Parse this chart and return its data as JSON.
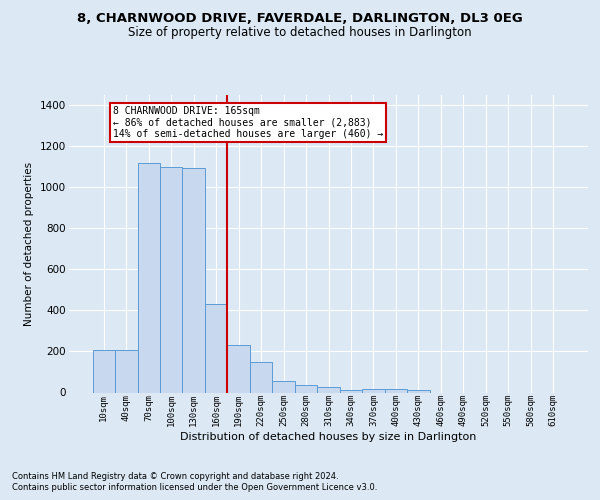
{
  "title": "8, CHARNWOOD DRIVE, FAVERDALE, DARLINGTON, DL3 0EG",
  "subtitle": "Size of property relative to detached houses in Darlington",
  "xlabel": "Distribution of detached houses by size in Darlington",
  "ylabel": "Number of detached properties",
  "bar_color": "#c8d9ef",
  "bar_edge_color": "#5b9bd5",
  "bin_labels": [
    "10sqm",
    "40sqm",
    "70sqm",
    "100sqm",
    "130sqm",
    "160sqm",
    "190sqm",
    "220sqm",
    "250sqm",
    "280sqm",
    "310sqm",
    "340sqm",
    "370sqm",
    "400sqm",
    "430sqm",
    "460sqm",
    "490sqm",
    "520sqm",
    "550sqm",
    "580sqm",
    "610sqm"
  ],
  "bar_values": [
    207,
    207,
    1120,
    1100,
    1095,
    430,
    230,
    148,
    58,
    38,
    25,
    12,
    15,
    15,
    10,
    0,
    0,
    0,
    0,
    0,
    0
  ],
  "annotation_line1": "8 CHARNWOOD DRIVE: 165sqm",
  "annotation_line2": "← 86% of detached houses are smaller (2,883)",
  "annotation_line3": "14% of semi-detached houses are larger (460) →",
  "annotation_box_color": "#ffffff",
  "annotation_box_edge": "#cc0000",
  "vline_color": "#cc0000",
  "vline_x": 5.5,
  "ylim": [
    0,
    1450
  ],
  "yticks": [
    0,
    200,
    400,
    600,
    800,
    1000,
    1200,
    1400
  ],
  "footer1": "Contains HM Land Registry data © Crown copyright and database right 2024.",
  "footer2": "Contains public sector information licensed under the Open Government Licence v3.0.",
  "bg_color": "#dce9f5",
  "plot_bg_color": "#dce9f5",
  "grid_color": "#ffffff",
  "title_fontsize": 9.5,
  "subtitle_fontsize": 8.5
}
